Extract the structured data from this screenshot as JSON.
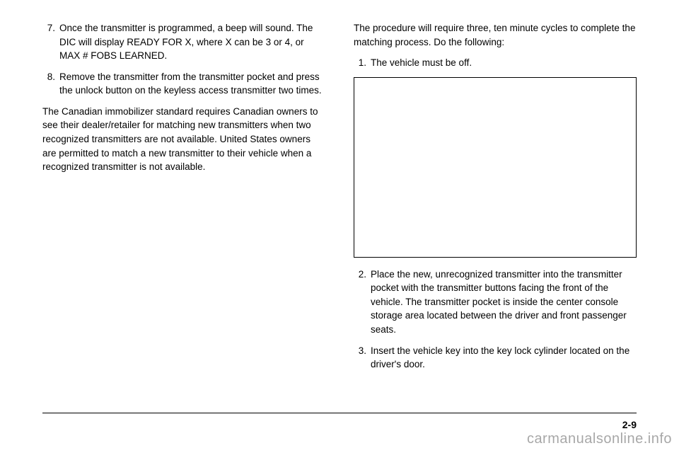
{
  "left": {
    "items": [
      {
        "n": "7.",
        "t": "Once the transmitter is programmed, a beep will sound. The DIC will display READY FOR X, where X can be 3 or 4, or MAX # FOBS LEARNED."
      },
      {
        "n": "8.",
        "t": "Remove the transmitter from the transmitter pocket and press the unlock button on the keyless access transmitter two times."
      }
    ],
    "para": "The Canadian immobilizer standard requires Canadian owners to see their dealer/retailer for matching new transmitters when two recognized transmitters are not available. United States owners are permitted to match a new transmitter to their vehicle when a recognized transmitter is not available."
  },
  "right": {
    "intro": "The procedure will require three, ten minute cycles to complete the matching process. Do the following:",
    "items": [
      {
        "n": "1.",
        "t": "The vehicle must be off."
      },
      {
        "n": "2.",
        "t": "Place the new, unrecognized transmitter into the transmitter pocket with the transmitter buttons facing the front of the vehicle. The transmitter pocket is inside the center console storage area located between the driver and front passenger seats."
      },
      {
        "n": "3.",
        "t": "Insert the vehicle key into the key lock cylinder located on the driver's door."
      }
    ]
  },
  "pageNumber": "2-9",
  "watermark": "carmanualsonline.info"
}
